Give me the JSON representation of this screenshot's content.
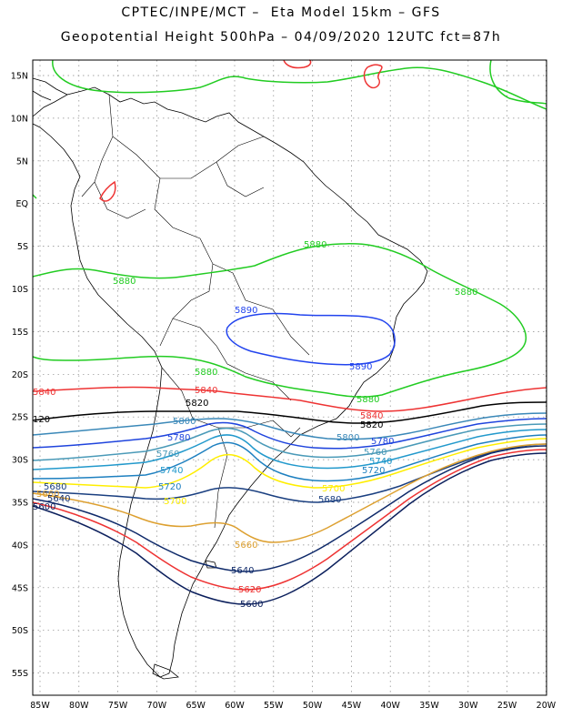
{
  "title_line1": "CPTEC/INPE/MCT –  Eta Model 15km – GFS",
  "title_line2": "Geopotential Height 500hPa – 04/09/2020 12UTC fct=87h",
  "lat_labels": [
    "15N",
    "10N",
    "5N",
    "EQ",
    "5S",
    "10S",
    "15S",
    "20S",
    "25S",
    "30S",
    "35S",
    "40S",
    "45S",
    "50S",
    "55S"
  ],
  "lon_labels": [
    "85W",
    "80W",
    "75W",
    "70W",
    "65W",
    "60W",
    "55W",
    "50W",
    "45W",
    "40W",
    "35W",
    "30W",
    "25W",
    "20W"
  ],
  "contour_labels": {
    "l5880a": "5880",
    "l5880b": "5880",
    "l5880c": "5880",
    "l5880d": "5880",
    "l5880e": "5880",
    "l5890a": "5890",
    "l5890b": "5890",
    "l5840a": "5840",
    "l5840b": "5840",
    "l5840c": "5840",
    "l5820a": "5820",
    "l5820b": "5820",
    "l5820c": "120",
    "l5800a": "5800",
    "l5800b": "5800",
    "l5780a": "5780",
    "l5780b": "5780",
    "l5760a": "5760",
    "l5760b": "5760",
    "l5740a": "5740",
    "l5740b": "5740",
    "l5720a": "5720",
    "l5720b": "5720",
    "l5700a": "5700",
    "l5700b": "5700",
    "l5680a": "5680",
    "l5680b": "5680",
    "l5660a": "5660",
    "l5660b": "5660",
    "l5640a": "5640",
    "l5640b": "5640",
    "l5620": "5620",
    "l5600a": "5600",
    "l5600b": "5600"
  },
  "colors": {
    "c5880": "#22cc22",
    "c5890": "#2244ee",
    "c5840": "#ee3333",
    "c5820": "#000000",
    "c5800": "#3a88b8",
    "c5780": "#1f44dd",
    "c5760": "#4a9ab8",
    "c5740": "#2299cc",
    "c5720": "#1e80c0",
    "c5700": "#ffee00",
    "c5680": "#1a3f80",
    "c5660": "#dda030",
    "c5640": "#0f2a6a",
    "c5620": "#ee3333",
    "c5600": "#0b1f5c"
  }
}
